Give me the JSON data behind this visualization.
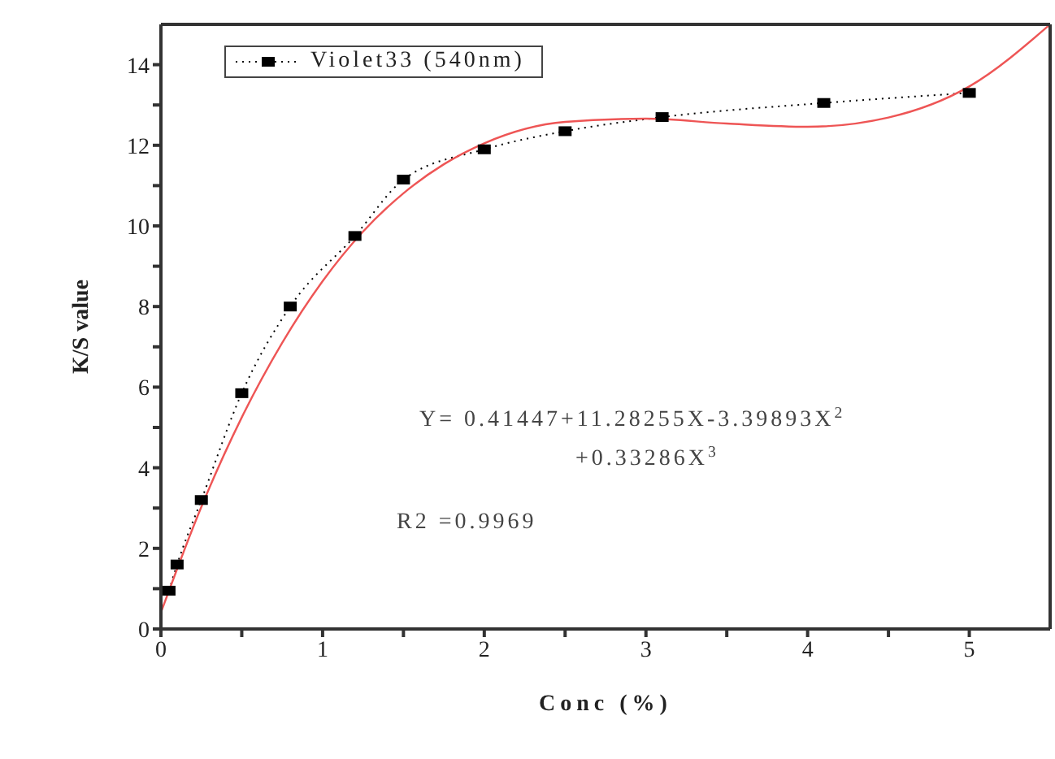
{
  "chart_data": {
    "type": "line",
    "xlabel": "Conc (%)",
    "ylabel": "K/S value",
    "xlim": [
      0,
      5.5
    ],
    "ylim": [
      0,
      15
    ],
    "xticks": [
      0,
      {
        "value": 0.5,
        "label": null
      },
      1,
      {
        "value": 1.5,
        "label": null
      },
      2,
      {
        "value": 2.5,
        "label": null
      },
      3,
      {
        "value": 3.5,
        "label": null
      },
      4,
      {
        "value": 4.5,
        "label": null
      },
      5
    ],
    "yticks": [
      0,
      {
        "value": 1,
        "label": null
      },
      2,
      {
        "value": 3,
        "label": null
      },
      4,
      {
        "value": 5,
        "label": null
      },
      6,
      {
        "value": 7,
        "label": null
      },
      8,
      {
        "value": 9,
        "label": null
      },
      10,
      {
        "value": 11,
        "label": null
      },
      12,
      {
        "value": 13,
        "label": null
      },
      14
    ],
    "legend": "top left",
    "series": [
      {
        "name": "Violet33 (540nm)",
        "color": "#000000",
        "marker": "square",
        "line_style": "dotted",
        "x": [
          0.05,
          0.1,
          0.25,
          0.5,
          0.8,
          1.2,
          1.5,
          2,
          2.5,
          3.1,
          4.1,
          5
        ],
        "values": [
          0.95,
          1.6,
          3.2,
          5.85,
          8.0,
          9.75,
          11.15,
          11.9,
          12.35,
          12.7,
          13.05,
          13.3
        ]
      },
      {
        "color": "#ee5555",
        "marker": "none",
        "line_style": "solid",
        "x": [
          0,
          0.25,
          0.5,
          0.75,
          1,
          1.25,
          1.5,
          1.75,
          2,
          2.5,
          3,
          3.5,
          4,
          4.5,
          5,
          5.5
        ],
        "values": [
          0.41,
          3.03,
          5.25,
          7.1,
          8.63,
          9.86,
          10.81,
          11.53,
          12.05,
          12.58,
          12.66,
          12.54,
          12.46,
          12.69,
          13.46,
          15.0
        ]
      }
    ],
    "annotations": [
      "Y= 0.41447+11.28255X-3.39893X$^{2}$",
      "+0.33286X$^{3}$",
      "R2 =0.9969"
    ]
  }
}
